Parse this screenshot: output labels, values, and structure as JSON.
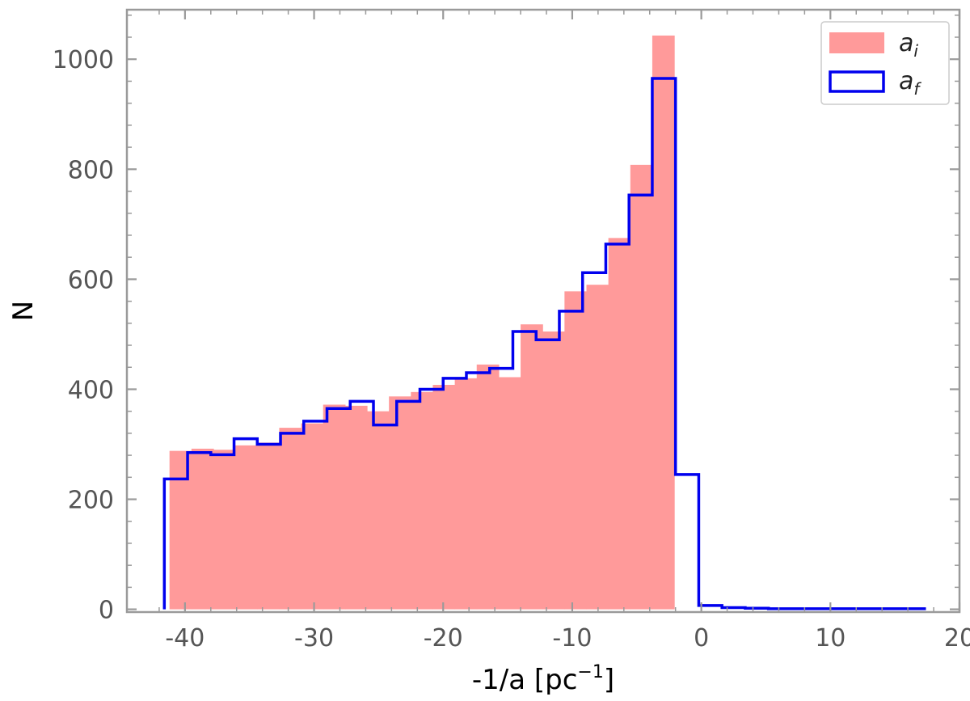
{
  "chart_data": {
    "type": "histogram",
    "title": "",
    "xlabel": {
      "main": "-1/a [pc",
      "sup": "−1",
      "close": "]"
    },
    "ylabel": "N",
    "xlim": [
      -44.5,
      20
    ],
    "ylim": [
      -5,
      1090
    ],
    "xticks": [
      -40,
      -30,
      -20,
      -10,
      0,
      10,
      20
    ],
    "yticks": [
      0,
      200,
      400,
      600,
      800,
      1000
    ],
    "xtick_labels": [
      "-40",
      "-30",
      "-20",
      "-10",
      "0",
      "10",
      "20"
    ],
    "ytick_labels": [
      "0",
      "200",
      "400",
      "600",
      "800",
      "1000"
    ],
    "grid": false,
    "legend_position": "top-right",
    "series": [
      {
        "name_base": "a",
        "name_sub": "i",
        "style": "filled",
        "color": "#ff9a9a",
        "edges": [
          -41.2,
          -39.5,
          -37.8,
          -36.1,
          -34.4,
          -32.7,
          -31.0,
          -29.3,
          -27.6,
          -25.9,
          -24.2,
          -22.5,
          -20.8,
          -19.1,
          -17.4,
          -15.7,
          -14.0,
          -12.3,
          -10.6,
          -8.9,
          -7.2,
          -5.5,
          -3.8,
          -2.1
        ],
        "counts": [
          288,
          292,
          290,
          298,
          303,
          330,
          338,
          372,
          370,
          360,
          387,
          395,
          408,
          420,
          445,
          422,
          518,
          505,
          578,
          590,
          675,
          808,
          1043
        ]
      },
      {
        "name_base": "a",
        "name_sub": "f",
        "style": "step",
        "color": "#0000ee",
        "edges": [
          -41.6,
          -39.8,
          -38.0,
          -36.2,
          -34.4,
          -32.6,
          -30.8,
          -29.0,
          -27.2,
          -25.4,
          -23.6,
          -21.8,
          -20.0,
          -18.2,
          -16.4,
          -14.6,
          -12.8,
          -11.0,
          -9.2,
          -7.4,
          -5.6,
          -3.8,
          -2.0,
          -0.2,
          1.6,
          3.4,
          5.2,
          7.0,
          8.8,
          10.6,
          12.4,
          14.2,
          16.0,
          17.4
        ],
        "counts": [
          237,
          285,
          281,
          310,
          300,
          320,
          342,
          365,
          378,
          335,
          378,
          400,
          420,
          430,
          438,
          505,
          490,
          542,
          612,
          664,
          753,
          965,
          245,
          7,
          3,
          2,
          1,
          1,
          1,
          1,
          1,
          1,
          1
        ]
      }
    ]
  },
  "colors": {
    "frame": "#9a9a9a",
    "tick": "#9a9a9a",
    "fill": "#ff9a9a",
    "step": "#0000ee"
  }
}
